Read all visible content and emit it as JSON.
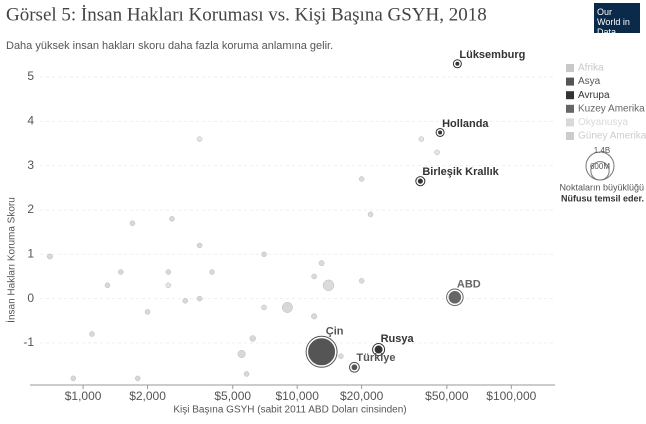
{
  "chart_data": {
    "type": "bubble",
    "title": "Görsel 5: İnsan Hakları Koruması vs. Kişi Başına GSYH, 2018",
    "subtitle": "Daha yüksek insan hakları skoru daha fazla koruma anlamına gelir.",
    "logo": "Our World in Data",
    "x_label": "Kişi Başına GSYH (sabit 2011 ABD Doları cinsinden)",
    "y_label": "İnsan Hakları Koruma Skoru",
    "x_log": true,
    "grid": true,
    "legend_position": "right",
    "xlim": [
      565,
      160000
    ],
    "ylim": [
      -1.95,
      5.34
    ],
    "xticks": [
      {
        "value": 1000,
        "label": "$1,000"
      },
      {
        "value": 2000,
        "label": "$2,000"
      },
      {
        "value": 5000,
        "label": "$5,000"
      },
      {
        "value": 10000,
        "label": "$10,000"
      },
      {
        "value": 20000,
        "label": "$20,000"
      },
      {
        "value": 50000,
        "label": "$50,000"
      },
      {
        "value": 100000,
        "label": "$100,000"
      }
    ],
    "yticks": [
      -1,
      0,
      1,
      2,
      3,
      4,
      5
    ],
    "size_legend": {
      "title": "Noktaların büyüklüğü",
      "subtitle": "Nüfusu temsil eder.",
      "sizes": [
        {
          "value": 1400000000,
          "label": "1.4B"
        },
        {
          "value": 600000000,
          "label": "600M"
        }
      ]
    },
    "series": [
      {
        "name": "Afrika",
        "color": "#c8c8c8",
        "x": [
          700,
          1300,
          1500,
          1700,
          2000,
          2500,
          3000,
          3500,
          4000,
          5500,
          6200,
          9000,
          12000,
          1800,
          900,
          5800,
          3500,
          7000,
          2600,
          1100
        ],
        "values": [
          0.95,
          0.3,
          0.6,
          1.7,
          -0.3,
          0.6,
          -0.05,
          0.0,
          0.6,
          -1.25,
          -0.9,
          -0.2,
          -0.4,
          -1.8,
          -1.8,
          -1.7,
          1.2,
          1.0,
          1.8,
          -0.8
        ],
        "sizes": [
          50000000,
          30000000,
          20000000,
          10000000,
          25000000,
          40000000,
          30000000,
          15000000,
          20000000,
          100000000,
          60000000,
          190000000,
          55000000,
          30000000,
          40000000,
          40000000,
          10000000,
          8000000,
          5000000,
          15000000
        ],
        "labels": [
          null,
          null,
          null,
          null,
          null,
          null,
          null,
          null,
          null,
          null,
          null,
          null,
          null,
          null,
          null,
          null,
          null,
          null,
          null,
          null
        ]
      },
      {
        "name": "Asya",
        "color": "#555555",
        "x": [
          13000,
          18500
        ],
        "values": [
          -1.2,
          -1.55
        ],
        "sizes": [
          1400000000,
          82000000
        ],
        "labels": [
          "Çin",
          "Türkiye"
        ]
      },
      {
        "name": "Avrupa",
        "color": "#333333",
        "x": [
          56000,
          46500,
          37600,
          24000
        ],
        "values": [
          5.3,
          3.75,
          2.65,
          -1.15
        ],
        "sizes": [
          600000,
          17000000,
          66000000,
          145000000
        ],
        "labels": [
          "Lüksemburg",
          "Hollanda",
          "Birleşik Krallık",
          "Rusya"
        ]
      },
      {
        "name": "Kuzey Amerika",
        "color": "#666666",
        "x": [
          54500
        ],
        "values": [
          0.03
        ],
        "sizes": [
          327000000
        ],
        "labels": [
          "ABD"
        ]
      },
      {
        "name": "Okyanusya",
        "color": "#d9d9d9",
        "x": [
          45000,
          38000,
          3500,
          2500
        ],
        "values": [
          3.3,
          3.6,
          3.6,
          0.3
        ],
        "sizes": [
          25000000,
          5000000,
          8000000,
          1000000
        ],
        "labels": [
          null,
          null,
          null,
          null
        ]
      },
      {
        "name": "Güney Amerika",
        "color": "#cccccc",
        "x": [
          14000,
          20000,
          13000,
          12000,
          22000,
          20000,
          7000,
          16000
        ],
        "values": [
          0.3,
          0.4,
          0.8,
          0.5,
          1.9,
          2.7,
          -0.2,
          -1.3
        ],
        "sizes": [
          210000000,
          45000000,
          50000000,
          32000000,
          18000000,
          3000000,
          11000000,
          30000000
        ],
        "labels": [
          null,
          null,
          null,
          null,
          null,
          null,
          null,
          null
        ]
      }
    ]
  }
}
